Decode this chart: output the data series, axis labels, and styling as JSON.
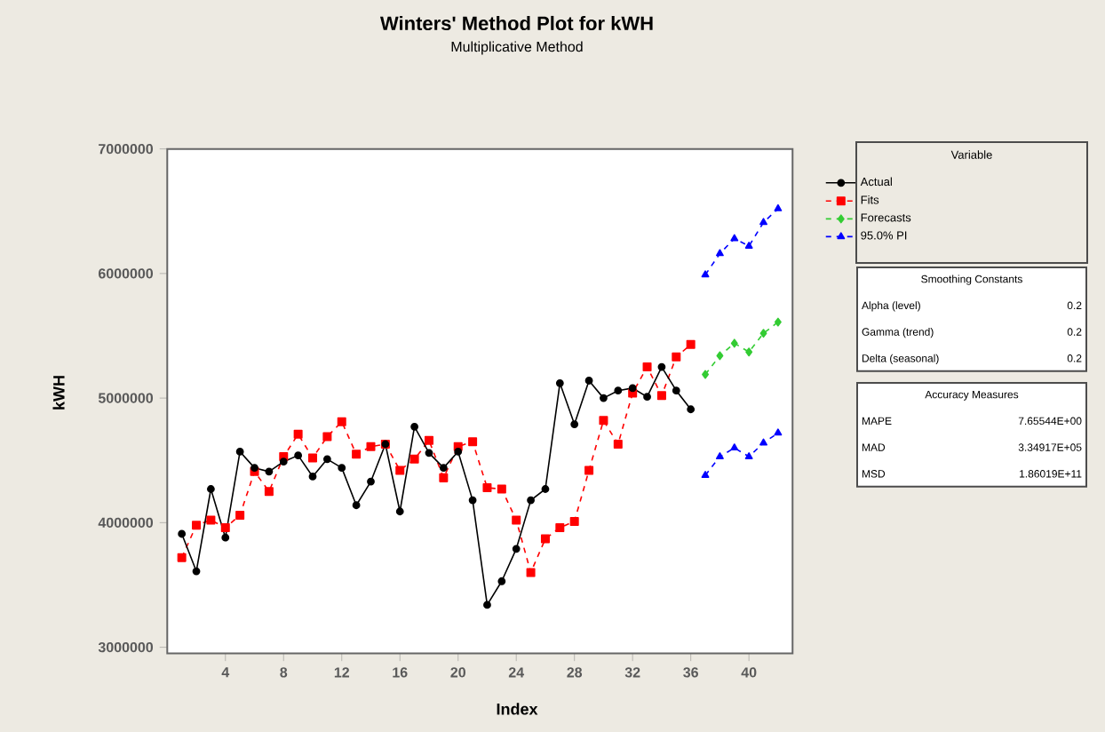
{
  "chart_data": {
    "type": "line",
    "title": "Winters' Method Plot for kWH",
    "subtitle": "Multiplicative Method",
    "xlabel": "Index",
    "ylabel": "kWH",
    "legend_title": "Variable",
    "legend": "right",
    "grid": false,
    "xlim": [
      0,
      43
    ],
    "ylim": [
      2950000,
      7000000
    ],
    "xticks": [
      4,
      8,
      12,
      16,
      20,
      24,
      28,
      32,
      36,
      40
    ],
    "yticks": [
      3000000,
      4000000,
      5000000,
      6000000,
      7000000
    ],
    "series": [
      {
        "name": "Actual",
        "color": "#000000",
        "marker": "circle",
        "line_style": "solid",
        "x": [
          1,
          2,
          3,
          4,
          5,
          6,
          7,
          8,
          9,
          10,
          11,
          12,
          13,
          14,
          15,
          16,
          17,
          18,
          19,
          20,
          21,
          22,
          23,
          24,
          25,
          26,
          27,
          28,
          29,
          30,
          31,
          32,
          33,
          34,
          35,
          36
        ],
        "values": [
          3910000,
          3610000,
          4270000,
          3880000,
          4570000,
          4440000,
          4410000,
          4490000,
          4540000,
          4370000,
          4510000,
          4440000,
          4140000,
          4330000,
          4630000,
          4090000,
          4770000,
          4560000,
          4440000,
          4570000,
          4180000,
          3340000,
          3530000,
          3790000,
          4180000,
          4270000,
          5120000,
          4790000,
          5140000,
          5000000,
          5060000,
          5080000,
          5010000,
          5250000,
          5060000,
          4910000
        ]
      },
      {
        "name": "Fits",
        "color": "#ff0000",
        "marker": "square",
        "line_style": "dashed",
        "x": [
          1,
          2,
          3,
          4,
          5,
          6,
          7,
          8,
          9,
          10,
          11,
          12,
          13,
          14,
          15,
          16,
          17,
          18,
          19,
          20,
          21,
          22,
          23,
          24,
          25,
          26,
          27,
          28,
          29,
          30,
          31,
          32,
          33,
          34,
          35,
          36
        ],
        "values": [
          3720000,
          3980000,
          4020000,
          3960000,
          4060000,
          4410000,
          4250000,
          4530000,
          4710000,
          4520000,
          4690000,
          4810000,
          4550000,
          4610000,
          4630000,
          4420000,
          4510000,
          4660000,
          4360000,
          4610000,
          4650000,
          4280000,
          4270000,
          4020000,
          3600000,
          3870000,
          3960000,
          4010000,
          4420000,
          4820000,
          4630000,
          5040000,
          5250000,
          5020000,
          5330000,
          5430000
        ]
      },
      {
        "name": "Forecasts",
        "color": "#33cc33",
        "marker": "diamond",
        "line_style": "dashed",
        "x": [
          37,
          38,
          39,
          40,
          41,
          42
        ],
        "values": [
          5190000,
          5340000,
          5440000,
          5370000,
          5520000,
          5610000
        ]
      },
      {
        "name": "95.0% PI",
        "color": "#0000ff",
        "marker": "triangle",
        "line_style": "dashed",
        "x": [
          37,
          38,
          39,
          40,
          41,
          42
        ],
        "values": [
          5990000,
          6160000,
          6280000,
          6220000,
          6410000,
          6520000
        ]
      },
      {
        "color": "#0000ff",
        "marker": "triangle",
        "line_style": "dashed",
        "x": [
          37,
          38,
          39,
          40,
          41,
          42
        ],
        "values": [
          4380000,
          4530000,
          4600000,
          4530000,
          4640000,
          4720000
        ]
      }
    ],
    "annotations": [
      "Smoothing Constants",
      "Alpha (level)",
      "0.2",
      "Gamma (trend)",
      "0.2",
      "Delta (seasonal)",
      "0.2",
      "Accuracy Measures",
      "MAPE",
      "7.65544E+00",
      "MAD",
      "3.34917E+05",
      "MSD",
      "1.86019E+11"
    ]
  }
}
